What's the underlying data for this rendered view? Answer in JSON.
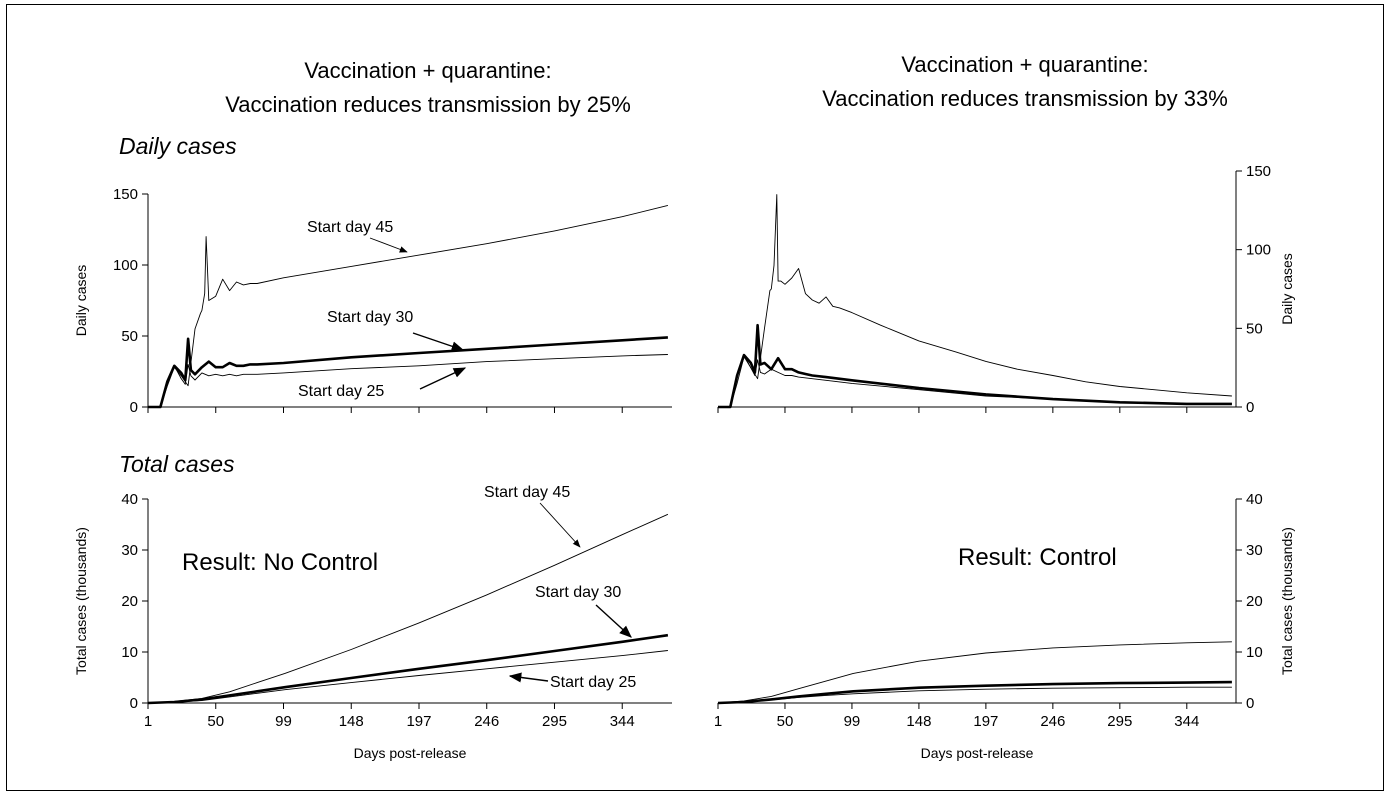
{
  "titles": {
    "left_line1": "Vaccination + quarantine:",
    "left_line2": "Vaccination reduces transmission by 25%",
    "right_line1": "Vaccination + quarantine:",
    "right_line2": "Vaccination reduces transmission by 33%"
  },
  "sections": {
    "daily": "Daily cases",
    "total": "Total cases"
  },
  "results": {
    "left": "Result:  No Control",
    "right": "Result:  Control"
  },
  "chart_data": [
    {
      "type": "line",
      "title": "",
      "xlabel": "",
      "ylabel": "Daily cases",
      "ylim": [
        0,
        150
      ],
      "yticks": [
        0,
        50,
        100,
        150
      ],
      "xlim": [
        1,
        380
      ],
      "series": [
        {
          "name": "Start day 45",
          "x": [
            1,
            10,
            15,
            20,
            25,
            30,
            35,
            39,
            40,
            42,
            43,
            45,
            50,
            55,
            60,
            65,
            70,
            75,
            80,
            99,
            148,
            197,
            246,
            295,
            344,
            377
          ],
          "y": [
            0,
            0,
            15,
            28,
            22,
            15,
            55,
            66,
            68,
            80,
            120,
            75,
            78,
            90,
            82,
            88,
            86,
            87,
            87,
            91,
            99,
            107,
            115,
            124,
            134,
            142
          ]
        },
        {
          "name": "Start day 30",
          "x": [
            1,
            10,
            15,
            20,
            25,
            28,
            30,
            32,
            35,
            40,
            45,
            50,
            55,
            60,
            65,
            70,
            75,
            80,
            99,
            148,
            197,
            246,
            295,
            344,
            377
          ],
          "y": [
            0,
            0,
            18,
            29,
            24,
            19,
            48,
            26,
            23,
            28,
            32,
            28,
            28,
            31,
            29,
            29,
            30,
            30,
            31,
            35,
            38,
            41,
            44,
            47,
            49
          ]
        },
        {
          "name": "Start day 25",
          "x": [
            1,
            10,
            15,
            20,
            25,
            28,
            30,
            32,
            35,
            40,
            45,
            50,
            55,
            60,
            65,
            70,
            75,
            80,
            99,
            148,
            197,
            246,
            295,
            344,
            377
          ],
          "y": [
            0,
            0,
            18,
            29,
            20,
            16,
            30,
            22,
            19,
            24,
            22,
            23,
            22,
            23,
            22,
            23,
            23,
            23,
            24,
            27,
            29,
            32,
            34,
            36,
            37
          ]
        }
      ],
      "annotations": [
        "Start day 45",
        "Start day 30",
        "Start day 25"
      ]
    },
    {
      "type": "line",
      "title": "",
      "xlabel": "",
      "ylabel": "Daily cases",
      "ylim": [
        0,
        150
      ],
      "yticks": [
        0,
        50,
        100,
        150
      ],
      "xlim": [
        1,
        380
      ],
      "series": [
        {
          "name": "",
          "x": [
            1,
            10,
            15,
            20,
            25,
            30,
            35,
            39,
            40,
            42,
            44,
            45,
            47,
            50,
            55,
            60,
            65,
            70,
            75,
            80,
            85,
            90,
            99,
            120,
            148,
            175,
            197,
            220,
            246,
            270,
            295,
            320,
            344,
            377
          ],
          "y": [
            0,
            0,
            15,
            32,
            25,
            18,
            50,
            74,
            75,
            90,
            135,
            80,
            80,
            78,
            82,
            88,
            72,
            68,
            66,
            70,
            64,
            63,
            60,
            52,
            42,
            35,
            29,
            24,
            20,
            16,
            13,
            11,
            9,
            7
          ]
        },
        {
          "name": "",
          "x": [
            1,
            10,
            15,
            20,
            25,
            28,
            30,
            32,
            35,
            40,
            45,
            50,
            55,
            60,
            65,
            70,
            80,
            99,
            148,
            197,
            246,
            295,
            344,
            377
          ],
          "y": [
            0,
            0,
            20,
            33,
            28,
            22,
            52,
            27,
            28,
            24,
            31,
            24,
            24,
            22,
            21,
            20,
            19,
            17,
            12,
            8,
            5,
            3,
            2,
            2
          ]
        },
        {
          "name": "",
          "x": [
            1,
            10,
            15,
            20,
            25,
            28,
            30,
            32,
            35,
            40,
            45,
            50,
            55,
            60,
            70,
            80,
            99,
            148,
            197,
            246,
            295,
            344,
            377
          ],
          "y": [
            0,
            0,
            20,
            33,
            25,
            20,
            30,
            22,
            21,
            24,
            22,
            20,
            20,
            19,
            18,
            17,
            15,
            11,
            7,
            5,
            3,
            2,
            2
          ]
        }
      ]
    },
    {
      "type": "line",
      "title": "",
      "xlabel": "Days post-release",
      "ylabel": "Total cases (thousands)",
      "ylim": [
        0,
        40
      ],
      "yticks": [
        0,
        10,
        20,
        30,
        40
      ],
      "xticks": [
        1,
        50,
        99,
        148,
        197,
        246,
        295,
        344
      ],
      "xlim": [
        1,
        380
      ],
      "series": [
        {
          "name": "Start day 45",
          "x": [
            1,
            20,
            40,
            60,
            80,
            100,
            148,
            197,
            246,
            295,
            344,
            377
          ],
          "y": [
            0,
            0.3,
            0.9,
            2.2,
            4,
            5.8,
            10.5,
            15.7,
            21.2,
            27,
            33,
            37
          ]
        },
        {
          "name": "Start day 30",
          "x": [
            1,
            20,
            40,
            60,
            80,
            100,
            148,
            197,
            246,
            295,
            344,
            377
          ],
          "y": [
            0,
            0.2,
            0.7,
            1.5,
            2.3,
            3.1,
            4.9,
            6.7,
            8.4,
            10.2,
            12,
            13.3
          ]
        },
        {
          "name": "Start day 25",
          "x": [
            1,
            20,
            40,
            60,
            80,
            100,
            148,
            197,
            246,
            295,
            344,
            377
          ],
          "y": [
            0,
            0.2,
            0.5,
            1.2,
            1.9,
            2.6,
            4,
            5.4,
            6.7,
            8,
            9.3,
            10.3
          ]
        }
      ],
      "annotations": [
        "Start day 45",
        "Start day 30",
        "Start day 25"
      ]
    },
    {
      "type": "line",
      "title": "",
      "xlabel": "Days post-release",
      "ylabel": "Total cases (thousands)",
      "ylim": [
        0,
        40
      ],
      "yticks": [
        0,
        10,
        20,
        30,
        40
      ],
      "xticks": [
        1,
        50,
        99,
        148,
        197,
        246,
        295,
        344
      ],
      "xlim": [
        1,
        380
      ],
      "series": [
        {
          "name": "",
          "x": [
            1,
            20,
            40,
            60,
            80,
            100,
            148,
            197,
            246,
            295,
            344,
            377
          ],
          "y": [
            0,
            0.4,
            1.3,
            2.8,
            4.3,
            5.8,
            8.2,
            9.8,
            10.8,
            11.4,
            11.8,
            12
          ]
        },
        {
          "name": "",
          "x": [
            1,
            20,
            40,
            60,
            80,
            100,
            148,
            197,
            246,
            295,
            344,
            377
          ],
          "y": [
            0,
            0.2,
            0.7,
            1.3,
            1.8,
            2.3,
            3,
            3.4,
            3.7,
            3.9,
            4,
            4.1
          ]
        },
        {
          "name": "",
          "x": [
            1,
            20,
            40,
            60,
            80,
            100,
            148,
            197,
            246,
            295,
            344,
            377
          ],
          "y": [
            0,
            0.2,
            0.6,
            1.1,
            1.5,
            1.8,
            2.4,
            2.7,
            2.9,
            3,
            3.1,
            3.1
          ]
        }
      ]
    }
  ]
}
